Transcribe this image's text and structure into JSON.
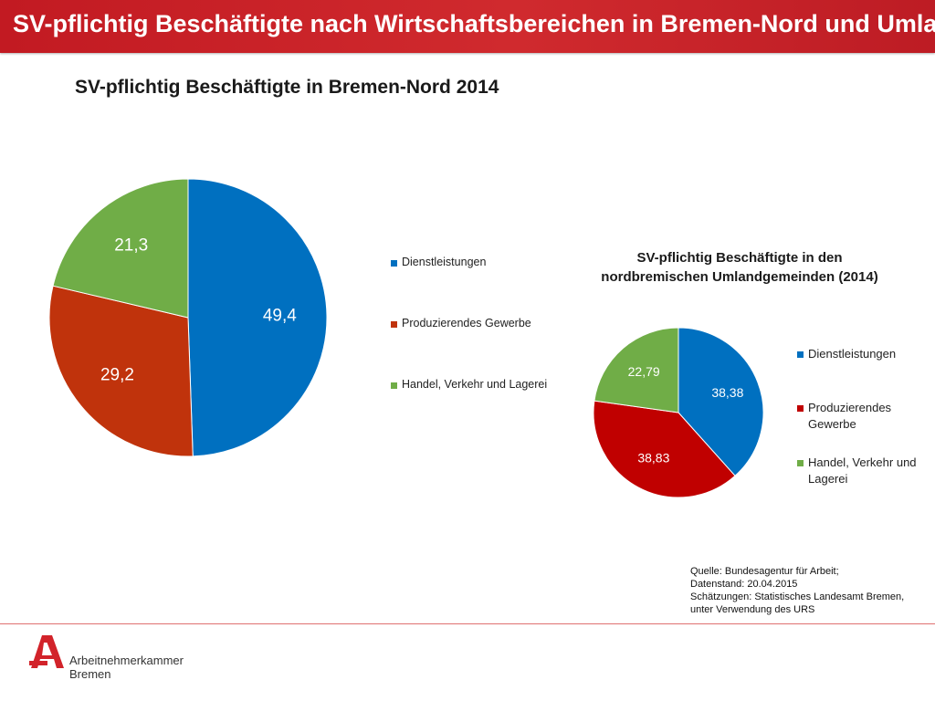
{
  "header": {
    "title": "SV-pflichtig Beschäftigte nach Wirtschaftsbereichen in Bremen-Nord und Umland"
  },
  "colors": {
    "dienstleistungen": "#0070c0",
    "produzierendes_1": "#c0330c",
    "produzierendes_2": "#c00000",
    "handel": "#70ad47",
    "header_bg": "#c8202a",
    "logo_red": "#d2232a"
  },
  "chart_data": [
    {
      "type": "pie",
      "title": "SV-pflichtig Beschäftigte in Bremen-Nord 2014",
      "categories": [
        "Dienstleistungen",
        "Produzierendes Gewerbe",
        "Handel, Verkehr und Lagerei"
      ],
      "values": [
        49.4,
        29.2,
        21.3
      ],
      "data_labels": [
        "49,4",
        "29,2",
        "21,3"
      ],
      "legend_placement": "right"
    },
    {
      "type": "pie",
      "title": "SV-pflichtig Beschäftigte in den nordbremischen Umlandgemeinden (2014)",
      "title_lines": [
        "SV-pflichtig Beschäftigte in den",
        "nordbremischen Umlandgemeinden (2014)"
      ],
      "categories": [
        "Dienstleistungen",
        "Produzierendes Gewerbe",
        "Handel, Verkehr und Lagerei"
      ],
      "legend_lines": [
        [
          "Dienstleistungen"
        ],
        [
          "Produzierendes",
          "Gewerbe"
        ],
        [
          "Handel, Verkehr und",
          "Lagerei"
        ]
      ],
      "values": [
        38.38,
        38.83,
        22.79
      ],
      "data_labels": [
        "38,38",
        "38,83",
        "22,79"
      ],
      "legend_placement": "right"
    }
  ],
  "source": {
    "lines": [
      "Quelle: Bundesagentur für Arbeit;",
      "Datenstand: 20.04.2015",
      "Schätzungen: Statistisches Landesamt Bremen,",
      "unter Verwendung des URS"
    ]
  },
  "logo": {
    "lines": [
      "Arbeitnehmerkammer",
      "Bremen"
    ],
    "icon": "arbeitnehmerkammer-a-logo"
  }
}
